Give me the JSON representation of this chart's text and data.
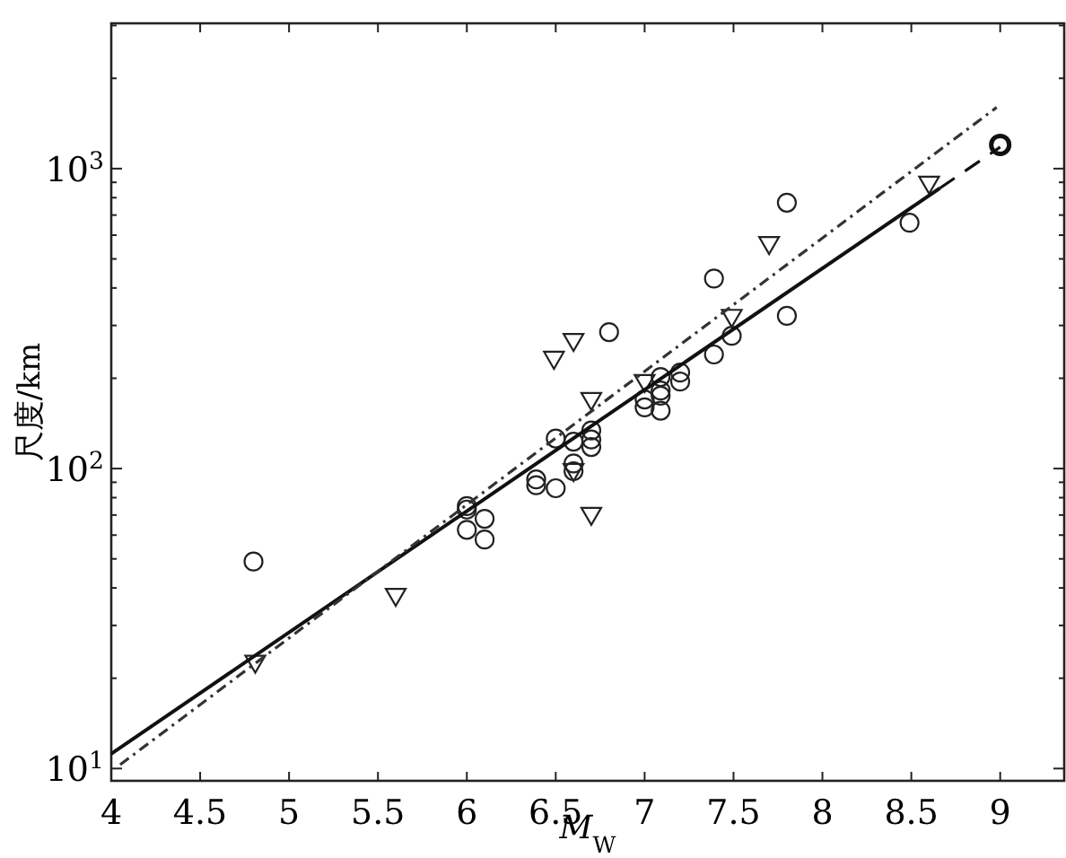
{
  "chart_data": {
    "type": "scatter",
    "xlabel": "*M*$_{W}$",
    "ylabel": "尺度/km",
    "log": "y",
    "grid": false,
    "xlim": [
      4,
      9.36
    ],
    "ylim": [
      9.1,
      3050
    ],
    "xticks": [
      {
        "value": 4,
        "label": "4"
      },
      {
        "value": 4.5,
        "label": "4.5"
      },
      {
        "value": 5,
        "label": "5"
      },
      {
        "value": 5.5,
        "label": "5.5"
      },
      {
        "value": 6,
        "label": "6"
      },
      {
        "value": 6.5,
        "label": "6.5"
      },
      {
        "value": 7,
        "label": "7"
      },
      {
        "value": 7.5,
        "label": "7.5"
      },
      {
        "value": 8,
        "label": "8"
      },
      {
        "value": 8.5,
        "label": "8.5"
      },
      {
        "value": 9,
        "label": "9"
      }
    ],
    "yticks": [
      {
        "value": 10,
        "label": "10$^{1}$"
      },
      {
        "value": 100,
        "label": "10$^{2}$"
      },
      {
        "value": 1000,
        "label": "10$^{3}$"
      }
    ],
    "series": [
      {
        "marker": "circle",
        "color": "#222222",
        "x": [
          4.8,
          6.8,
          7.09,
          7.2,
          7.2,
          7.09,
          7.0,
          7.0,
          7.09,
          7.09,
          7.39,
          6.5,
          6.6,
          6.7,
          6.7,
          6.7,
          6.6,
          6.6,
          6.39,
          6.39,
          6.5,
          6.0,
          6.0,
          6.0,
          6.1,
          6.1,
          7.8,
          7.39,
          7.49,
          7.8,
          8.49
        ],
        "values": [
          49,
          285,
          202,
          209,
          195,
          182,
          170,
          160,
          175,
          156,
          240,
          126,
          123,
          134,
          125,
          118,
          104,
          98,
          92,
          88,
          86,
          73,
          75,
          62.5,
          68,
          58,
          770,
          430,
          277,
          323,
          660
        ]
      },
      {
        "marker": "triangle",
        "color": "#222222",
        "x": [
          7.7,
          8.6,
          7.49,
          6.6,
          6.49,
          6.7,
          7.0,
          6.7,
          6.6,
          5.6,
          4.81
        ],
        "values": [
          560,
          890,
          320,
          266,
          232,
          169,
          194,
          70,
          98,
          37.6,
          22.5
        ]
      },
      {
        "type": "line",
        "line_style": "solid",
        "color": "#111111",
        "x": [
          4,
          8.66
        ],
        "values": [
          11.2,
          860
        ]
      },
      {
        "type": "line",
        "line_style": "dashed",
        "color": "#111111",
        "x": [
          8.66,
          9
        ],
        "values": [
          860,
          1180
        ]
      },
      {
        "type": "line",
        "line_style": "dashdot",
        "color": "#333333",
        "x": [
          4.05,
          8.98
        ],
        "values": [
          10.3,
          1600
        ]
      },
      {
        "marker": "circle",
        "color": "#111111",
        "x": [
          9
        ],
        "values": [
          1200
        ]
      }
    ]
  }
}
